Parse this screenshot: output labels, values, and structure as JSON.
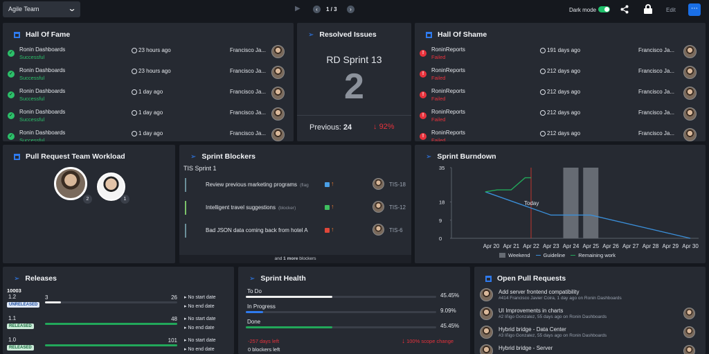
{
  "topbar": {
    "team": "Agile Team",
    "page": "1 / 3",
    "dark_mode_label": "Dark mode",
    "edit_label": "Edit"
  },
  "hall_of_fame": {
    "title": "Hall Of Fame",
    "rows": [
      {
        "name": "Ronin Dashboards",
        "status": "Successful",
        "time": "23 hours ago",
        "user": "Francisco Ja..."
      },
      {
        "name": "Ronin Dashboards",
        "status": "Successful",
        "time": "23 hours ago",
        "user": "Francisco Ja..."
      },
      {
        "name": "Ronin Dashboards",
        "status": "Successful",
        "time": "1 day ago",
        "user": "Francisco Ja..."
      },
      {
        "name": "Ronin Dashboards",
        "status": "Successful",
        "time": "1 day ago",
        "user": "Francisco Ja..."
      },
      {
        "name": "Ronin Dashboards",
        "status": "Successful",
        "time": "1 day ago",
        "user": "Francisco Ja..."
      }
    ]
  },
  "resolved": {
    "title": "Resolved Issues",
    "sprint": "RD Sprint 13",
    "count": "2",
    "previous_label": "Previous:",
    "previous_value": "24",
    "change": "92%"
  },
  "hall_of_shame": {
    "title": "Hall Of Shame",
    "rows": [
      {
        "name": "RoninReports",
        "status": "Failed",
        "time": "191 days ago",
        "user": "Francisco Ja..."
      },
      {
        "name": "RoninReports",
        "status": "Failed",
        "time": "212 days ago",
        "user": "Francisco Ja..."
      },
      {
        "name": "RoninReports",
        "status": "Failed",
        "time": "212 days ago",
        "user": "Francisco Ja..."
      },
      {
        "name": "RoninReports",
        "status": "Failed",
        "time": "212 days ago",
        "user": "Francisco Ja..."
      },
      {
        "name": "RoninReports",
        "status": "Failed",
        "time": "212 days ago",
        "user": "Francisco Ja..."
      }
    ]
  },
  "pr_workload": {
    "title": "Pull Request Team Workload",
    "users": [
      {
        "count": "2"
      },
      {
        "count": "1"
      }
    ]
  },
  "blockers": {
    "title": "Sprint Blockers",
    "sprint": "TIS Sprint 1",
    "items": [
      {
        "text": "Review previous marketing programs",
        "note": "(flag",
        "key": "TIS-18",
        "type_color": "#4a9fe6",
        "bar": "#6b8f9a"
      },
      {
        "text": "Intelligent travel suggestions",
        "note": "(blocker)",
        "key": "TIS-12",
        "type_color": "#3fbf5f",
        "bar": "#7cc36a"
      },
      {
        "text": "Bad JSON data coming back from hotel A",
        "note": "",
        "key": "TIS-6",
        "type_color": "#e0473a",
        "bar": "#6b8f9a"
      }
    ],
    "footer_pre": "and ",
    "footer_bold": "1 more",
    "footer_post": " blockers"
  },
  "burndown": {
    "title": "Sprint Burndown",
    "today_label": "Today",
    "legend": {
      "weekend": "Weekend",
      "guideline": "Guideline",
      "remaining": "Remaining work"
    }
  },
  "chart_data": {
    "type": "line",
    "x": [
      "Apr 20",
      "Apr 21",
      "Apr 22",
      "Apr 23",
      "Apr 24",
      "Apr 25",
      "Apr 26",
      "Apr 27",
      "Apr 28",
      "Apr 29",
      "Apr 30"
    ],
    "yticks": [
      0,
      9,
      18,
      35
    ],
    "ylim": [
      0,
      35
    ],
    "series": [
      {
        "name": "Guideline",
        "x": [
          19.7,
          23,
          24,
          25,
          30
        ],
        "y": [
          23,
          11.5,
          11.5,
          11.5,
          0
        ],
        "color": "#3b8fd9"
      },
      {
        "name": "Remaining work",
        "x": [
          19.7,
          20.3,
          21,
          21.7,
          22
        ],
        "y": [
          23,
          24,
          24,
          30,
          30
        ],
        "color": "#22a85a"
      }
    ],
    "weekend": [
      24,
      25
    ],
    "today": 22
  },
  "releases": {
    "title": "Releases",
    "project": "10003",
    "items": [
      {
        "version": "1.2",
        "tag": "UNRELEASED",
        "done": "3",
        "total": "26",
        "progress": 0.12,
        "start": "No start date",
        "end": "No end date"
      },
      {
        "version": "1.1",
        "tag": "RELEASED",
        "done": "",
        "total": "48",
        "progress": 1.0,
        "start": "No start date",
        "end": "No end date"
      },
      {
        "version": "1.0",
        "tag": "RELEASED",
        "done": "",
        "total": "101",
        "progress": 1.0,
        "start": "No start date",
        "end": "No end date"
      }
    ]
  },
  "health": {
    "title": "Sprint Health",
    "rows": [
      {
        "label": "To Do",
        "pct": "45.45%",
        "value": 0.4545,
        "color": "#f0f0f0"
      },
      {
        "label": "In Progress",
        "pct": "9.09%",
        "value": 0.0909,
        "color": "#2f7bef"
      },
      {
        "label": "Done",
        "pct": "45.45%",
        "value": 0.4545,
        "color": "#22a85a"
      }
    ],
    "days_left": "-257 days left",
    "scope": "100% scope change",
    "blockers_left": "0 blockers left"
  },
  "open_prs": {
    "title": "Open Pull Requests",
    "items": [
      {
        "title": "Add server frontend compatibility",
        "meta": "#414 Francisco Javier Coira, 1 day ago on Ronin Dashboards"
      },
      {
        "title": "UI Improvements in charts",
        "meta": "#2 Iñigo Gonzalez, 55 days ago on Ronin Dashboards"
      },
      {
        "title": "Hybrid bridge - Data Center",
        "meta": "#3 Iñigo Gonzalez, 55 days ago on Ronin Dashboards"
      },
      {
        "title": "Hybrid bridge - Server",
        "meta": ""
      }
    ]
  }
}
